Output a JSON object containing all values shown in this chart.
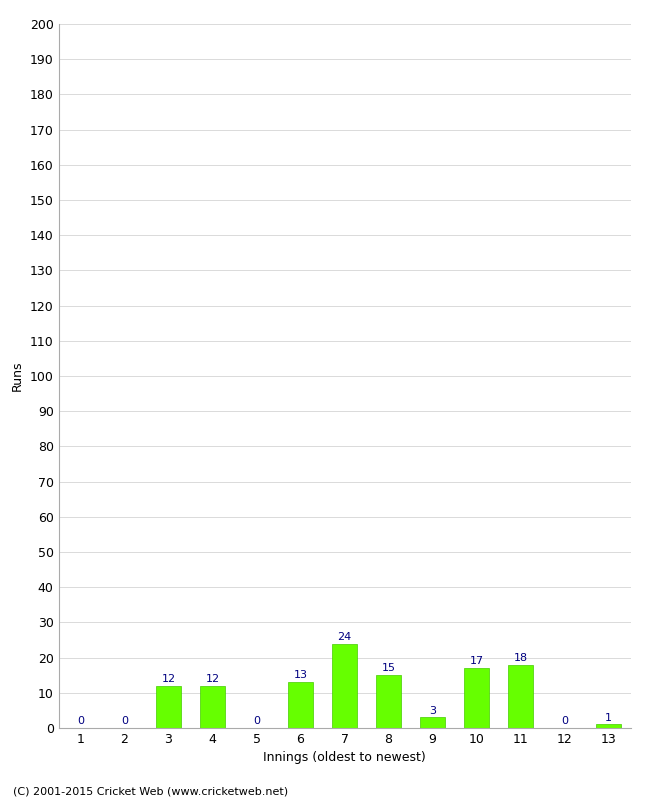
{
  "title": "",
  "xlabel": "Innings (oldest to newest)",
  "ylabel": "Runs",
  "categories": [
    1,
    2,
    3,
    4,
    5,
    6,
    7,
    8,
    9,
    10,
    11,
    12,
    13
  ],
  "values": [
    0,
    0,
    12,
    12,
    0,
    13,
    24,
    15,
    3,
    17,
    18,
    0,
    1
  ],
  "bar_color": "#66ff00",
  "bar_edge_color": "#44cc00",
  "label_color": "#000080",
  "ylim": [
    0,
    200
  ],
  "ytick_step": 10,
  "footer": "(C) 2001-2015 Cricket Web (www.cricketweb.net)",
  "background_color": "#ffffff",
  "grid_color": "#cccccc",
  "axis_fontsize": 9,
  "label_fontsize": 8,
  "footer_fontsize": 8,
  "bar_width": 0.55
}
